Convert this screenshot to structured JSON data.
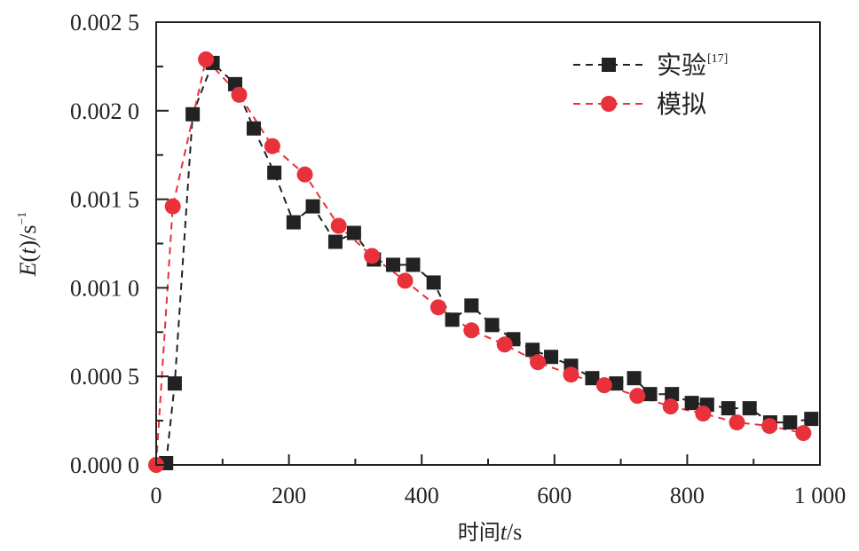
{
  "chart_data": {
    "type": "line",
    "xlabel_cn": "时间",
    "xlabel_var": "t",
    "xlabel_unit": "/s",
    "ylabel_var": "E",
    "ylabel_open": "(",
    "ylabel_t": "t",
    "ylabel_close": ")",
    "ylabel_unit": "/s",
    "ylabel_exp": "−1",
    "xlim": [
      0,
      1000
    ],
    "ylim": [
      0,
      0.0025
    ],
    "x_ticks": [
      0,
      200,
      400,
      600,
      800,
      1000
    ],
    "x_tick_labels": [
      "0",
      "200",
      "400",
      "600",
      "800",
      "1 000"
    ],
    "x_minor_ticks": [
      100,
      300,
      500,
      700,
      900
    ],
    "y_ticks": [
      0,
      0.0005,
      0.001,
      0.0015,
      0.002,
      0.0025
    ],
    "y_tick_labels": [
      "0.000 0",
      "0.000 5",
      "0.001 0",
      "0.001 5",
      "0.002 0",
      "0.002 5"
    ],
    "y_minor_ticks": [
      0.00025,
      0.00075,
      0.00125,
      0.00175,
      0.00225
    ],
    "grid": false,
    "legend_position": "top-right",
    "series": [
      {
        "name": "实验",
        "ref": "[17]",
        "marker": "square",
        "color": "#222222",
        "line": "dashed",
        "x": [
          15,
          28,
          55,
          85,
          119,
          147,
          178,
          207,
          236,
          270,
          298,
          328,
          357,
          387,
          418,
          446,
          475,
          506,
          538,
          567,
          595,
          625,
          657,
          693,
          720,
          744,
          777,
          807,
          830,
          862,
          894,
          925,
          955,
          987
        ],
        "y": [
          1e-05,
          0.00046,
          0.00198,
          0.00227,
          0.00215,
          0.0019,
          0.00165,
          0.00137,
          0.00146,
          0.00126,
          0.00131,
          0.00116,
          0.00113,
          0.00113,
          0.00103,
          0.00082,
          0.0009,
          0.00079,
          0.00071,
          0.00065,
          0.00061,
          0.00056,
          0.00049,
          0.00046,
          0.00049,
          0.0004,
          0.0004,
          0.00035,
          0.00034,
          0.00032,
          0.00032,
          0.00024,
          0.00024,
          0.00026
        ]
      },
      {
        "name": "模拟",
        "marker": "circle",
        "color": "#e8313a",
        "line": "dashed",
        "x": [
          0,
          25,
          75,
          125,
          175,
          224,
          275,
          325,
          375,
          425,
          475,
          525,
          575,
          625,
          675,
          725,
          775,
          824,
          875,
          924,
          975
        ],
        "y": [
          0,
          0.00146,
          0.00229,
          0.00209,
          0.0018,
          0.00164,
          0.00135,
          0.00118,
          0.00104,
          0.00089,
          0.00076,
          0.00068,
          0.00058,
          0.00051,
          0.00045,
          0.00039,
          0.00033,
          0.00029,
          0.00024,
          0.00022,
          0.00018
        ]
      }
    ]
  }
}
